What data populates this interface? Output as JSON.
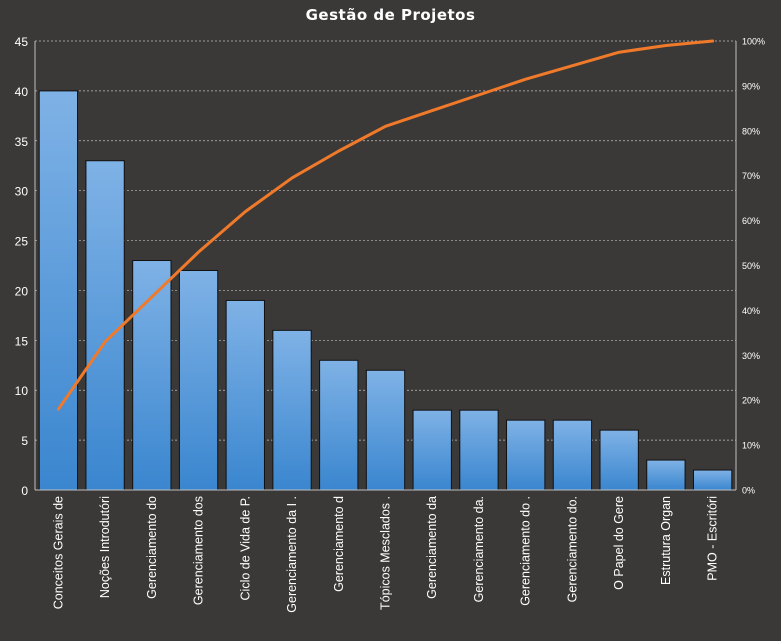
{
  "colors": {
    "background": "#3b3938",
    "bar_top": "#7fb2e6",
    "bar_bottom": "#3a86cf",
    "bar_border": "#111111",
    "line": "#f07a2a",
    "grid": "#bfbfbf",
    "text": "#ffffff"
  },
  "chart_data": {
    "type": "bar",
    "title": "Gestão de Projetos",
    "xlabel": "",
    "ylabel": "",
    "ylim": [
      0,
      45
    ],
    "y_ticks": [
      "0",
      "5",
      "10",
      "15",
      "20",
      "25",
      "30",
      "35",
      "40",
      "45"
    ],
    "y2lim": [
      0,
      100
    ],
    "y2_ticks": [
      "0%",
      "10%",
      "20%",
      "30%",
      "40%",
      "50%",
      "60%",
      "70%",
      "80%",
      "90%",
      "100%"
    ],
    "grid": true,
    "categories": [
      "Conceitos Gerais de",
      "Noções Introdutóri",
      "Gerenciamento do",
      "Gerenciamento dos",
      "Ciclo de Vida de P.",
      "Gerenciamento da I .",
      "Gerenciamento d",
      "Tópicos Mesclados .",
      "Gerenciamento da",
      "Gerenciamento da.",
      "Gerenciamento do .",
      "Gerenciamento do.",
      "O Papel do Gere",
      "Estrutura Organ",
      "PMO - Escritóri"
    ],
    "series": [
      {
        "type": "bar",
        "axis": "primary",
        "values": [
          40,
          33,
          23,
          22,
          19,
          16,
          13,
          12,
          8,
          8,
          7,
          7,
          6,
          3,
          2
        ]
      },
      {
        "type": "line",
        "axis": "secondary",
        "values": [
          18,
          33,
          43,
          53,
          62,
          69.5,
          75.5,
          81,
          84.5,
          88,
          91.5,
          94.5,
          97.5,
          99,
          100
        ]
      }
    ]
  }
}
